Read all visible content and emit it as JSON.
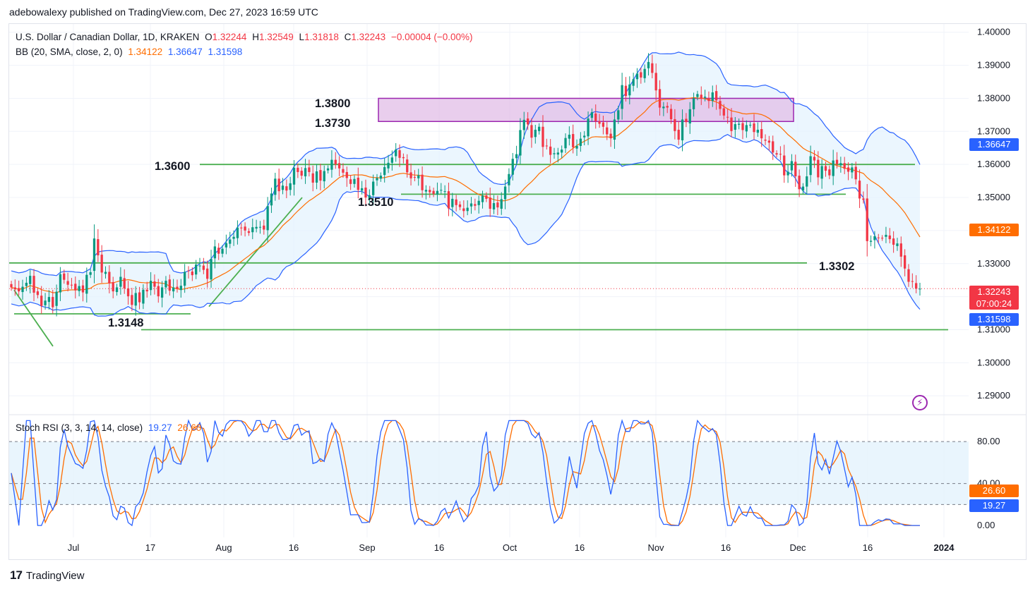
{
  "header": {
    "caption": "adebowalexy published on TradingView.com, Dec 27, 2023 16:59 UTC"
  },
  "legend": {
    "symbol": "U.S. Dollar / Canadian Dollar, 1D, KRAKEN",
    "ohlc": {
      "o_label": "O",
      "o": "1.32244",
      "h_label": "H",
      "h": "1.32549",
      "l_label": "L",
      "l": "1.31818",
      "c_label": "C",
      "c": "1.32243",
      "change": "−0.00004 (−0.00%)"
    },
    "bb": {
      "label": "BB (20, SMA, close, 2, 0)",
      "basis": "1.34122",
      "upper": "1.36647",
      "lower": "1.31598"
    },
    "stoch": {
      "label": "Stoch RSI (3, 3, 14, 14, close)",
      "k": "19.27",
      "d": "26.60"
    }
  },
  "price_tags": {
    "upper": "1.36647",
    "basis": "1.34122",
    "last": "1.32243",
    "countdown": "07:00:24",
    "lower": "1.31598",
    "stoch_d": "26.60",
    "stoch_k": "19.27"
  },
  "colors": {
    "up": "#089981",
    "down": "#f23645",
    "bb_band": "#2962ff",
    "bb_basis": "#ff6d00",
    "bb_fill": "#e3f2fd",
    "levels": "#4caf50",
    "zone": "#e1bee7",
    "zone_border": "#9c27b0",
    "stoch_k": "#2962ff",
    "stoch_d": "#ff6d00"
  },
  "footer": {
    "brand": "TradingView"
  },
  "chart_data": [
    {
      "type": "candlestick",
      "title": "U.S. Dollar / Canadian Dollar, 1D, KRAKEN",
      "y_axis": {
        "side": "right",
        "ylim": [
          1.2845,
          1.4025
        ],
        "ticks": [
          "1.40000",
          "1.39000",
          "1.38000",
          "1.37000",
          "1.36000",
          "1.35000",
          "1.34000",
          "1.33000",
          "1.32000",
          "1.31000",
          "1.30000",
          "1.29000"
        ]
      },
      "x_axis": {
        "ticks": [
          "Jul",
          "17",
          "Aug",
          "16",
          "Sep",
          "16",
          "Oct",
          "16",
          "Nov",
          "16",
          "Dec",
          "16",
          "2024"
        ]
      },
      "annotations": [
        "1.3800",
        "1.3730",
        "1.3600",
        "1.3510",
        "1.3302",
        "1.3148"
      ],
      "levels": [
        {
          "label": "1.3600",
          "value": 1.36
        },
        {
          "label": "1.3510",
          "value": 1.351
        },
        {
          "label": "1.3302",
          "value": 1.3302
        },
        {
          "label": "1.3148",
          "value": 1.3148
        },
        {
          "label": "",
          "value": 1.31
        }
      ],
      "zone": {
        "upper": 1.38,
        "lower": 1.373
      },
      "close": [
        1.3228,
        1.3222,
        1.3216,
        1.323,
        1.3242,
        1.3263,
        1.3212,
        1.3205,
        1.3172,
        1.3188,
        1.3199,
        1.3168,
        1.3215,
        1.3268,
        1.3251,
        1.3236,
        1.3235,
        1.3219,
        1.3232,
        1.3213,
        1.3266,
        1.3274,
        1.3376,
        1.3325,
        1.3273,
        1.3275,
        1.324,
        1.3216,
        1.3228,
        1.326,
        1.3225,
        1.3201,
        1.3175,
        1.3211,
        1.3183,
        1.3221,
        1.3216,
        1.3248,
        1.323,
        1.3201,
        1.3228,
        1.3248,
        1.3218,
        1.3228,
        1.3224,
        1.3233,
        1.3275,
        1.3278,
        1.3265,
        1.3297,
        1.3294,
        1.3281,
        1.3254,
        1.3314,
        1.3352,
        1.333,
        1.3345,
        1.3362,
        1.3373,
        1.3381,
        1.3409,
        1.3408,
        1.34,
        1.3393,
        1.341,
        1.3411,
        1.3411,
        1.3403,
        1.3474,
        1.3512,
        1.3557,
        1.3519,
        1.3536,
        1.3521,
        1.3543,
        1.359,
        1.3577,
        1.3566,
        1.3589,
        1.3577,
        1.3545,
        1.3579,
        1.3551,
        1.358,
        1.3588,
        1.3614,
        1.36,
        1.3588,
        1.3575,
        1.3559,
        1.3541,
        1.3556,
        1.3523,
        1.3528,
        1.35,
        1.3507,
        1.3548,
        1.3559,
        1.3566,
        1.3592,
        1.3605,
        1.3621,
        1.3645,
        1.362,
        1.3619,
        1.3576,
        1.3558,
        1.356,
        1.3567,
        1.3522,
        1.3523,
        1.3516,
        1.3511,
        1.352,
        1.3523,
        1.3519,
        1.3467,
        1.3496,
        1.3477,
        1.3471,
        1.3459,
        1.3469,
        1.3482,
        1.3475,
        1.349,
        1.3506,
        1.3496,
        1.3466,
        1.3483,
        1.347,
        1.3495,
        1.3533,
        1.3571,
        1.3617,
        1.3631,
        1.3704,
        1.3735,
        1.3721,
        1.3681,
        1.3705,
        1.3714,
        1.3653,
        1.3656,
        1.3629,
        1.3634,
        1.3636,
        1.3645,
        1.368,
        1.369,
        1.3652,
        1.3656,
        1.3678,
        1.3687,
        1.3739,
        1.3758,
        1.3731,
        1.3723,
        1.3714,
        1.3691,
        1.3679,
        1.3736,
        1.3764,
        1.384,
        1.3807,
        1.3842,
        1.3858,
        1.3875,
        1.3863,
        1.3889,
        1.391,
        1.3877,
        1.3824,
        1.3772,
        1.3775,
        1.3772,
        1.3737,
        1.3701,
        1.3675,
        1.3736,
        1.3728,
        1.3767,
        1.38,
        1.3813,
        1.38,
        1.3805,
        1.3792,
        1.3818,
        1.3794,
        1.3768,
        1.3748,
        1.3742,
        1.3701,
        1.3722,
        1.3723,
        1.3704,
        1.3719,
        1.372,
        1.3698,
        1.3705,
        1.3679,
        1.3672,
        1.3666,
        1.3636,
        1.363,
        1.3631,
        1.3567,
        1.3578,
        1.361,
        1.3564,
        1.3525,
        1.3533,
        1.3564,
        1.3625,
        1.3612,
        1.3561,
        1.3595,
        1.3581,
        1.3567,
        1.3612,
        1.3601,
        1.3604,
        1.3587,
        1.3578,
        1.3591,
        1.3555,
        1.3497,
        1.3493,
        1.3368,
        1.3369,
        1.3383,
        1.3378,
        1.3377,
        1.3387,
        1.3374,
        1.3357,
        1.3361,
        1.3321,
        1.3285,
        1.3245,
        1.3245,
        1.3224,
        1.3224
      ],
      "series": [
        {
          "name": "BB upper",
          "value_last": 1.36647
        },
        {
          "name": "BB basis",
          "value_last": 1.34122
        },
        {
          "name": "BB lower",
          "value_last": 1.31598
        }
      ]
    },
    {
      "type": "line",
      "title": "Stoch RSI (3, 3, 14, 14, close)",
      "y_axis": {
        "ticks": [
          "80.00",
          "40.00",
          "0.00"
        ],
        "ylim": [
          -10,
          105
        ],
        "bands": [
          20,
          40,
          80
        ]
      },
      "series": [
        {
          "name": "K",
          "value_last": 19.27
        },
        {
          "name": "D",
          "value_last": 26.6
        }
      ]
    }
  ]
}
